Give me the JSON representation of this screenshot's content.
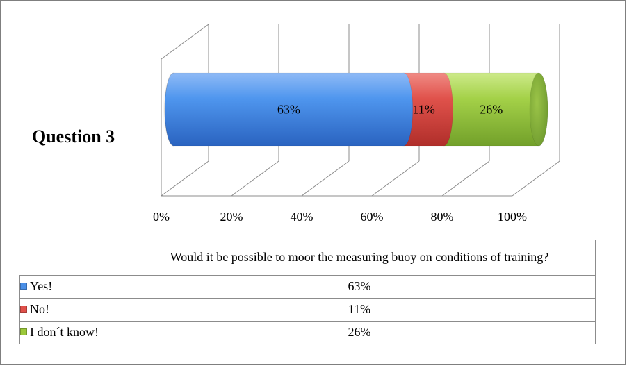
{
  "chart_data": {
    "type": "bar",
    "orientation": "horizontal",
    "stacked": "100%",
    "style": "3d-cylinder",
    "categories": [
      "Question 3"
    ],
    "series": [
      {
        "name": "Yes!",
        "values": [
          63
        ],
        "color": "#4a8fe7"
      },
      {
        "name": "No!",
        "values": [
          11
        ],
        "color": "#e0504a"
      },
      {
        "name": "I don´t know!",
        "values": [
          26
        ],
        "color": "#9bc83a"
      }
    ],
    "xlim": [
      0,
      100
    ],
    "xticks": [
      "0%",
      "20%",
      "40%",
      "60%",
      "80%",
      "100%"
    ],
    "grid": true
  },
  "table": {
    "header": "Would it be possible to moor the measuring buoy on conditions of training?",
    "rows": [
      {
        "label": "Yes!",
        "value": "63%",
        "color": "#4a8fe7"
      },
      {
        "label": "No!",
        "value": "11%",
        "color": "#e0504a"
      },
      {
        "label": "I don´t know!",
        "value": "26%",
        "color": "#9bc83a"
      }
    ]
  }
}
